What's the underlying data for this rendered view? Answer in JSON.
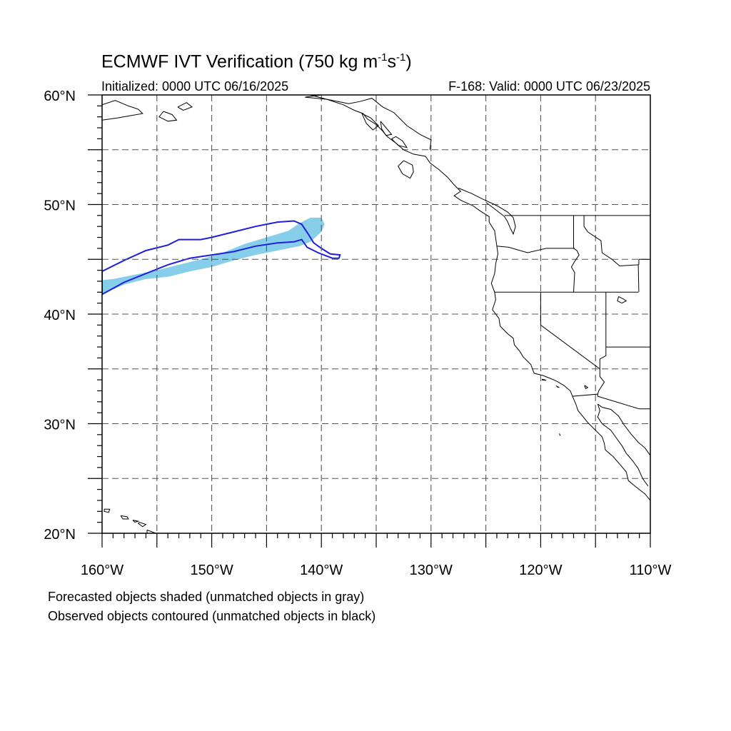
{
  "title": {
    "main": "ECMWF IVT Verification (750 kg m",
    "sup1": "-1",
    "mid": "s",
    "sup2": "-1",
    "end": ")"
  },
  "subtitle_left": "Initialized: 0000 UTC 06/16/2025",
  "subtitle_right": "F-168: Valid: 0000 UTC 06/23/2025",
  "map": {
    "lon_range": [
      -160,
      -110
    ],
    "lat_range": [
      20,
      60
    ],
    "gridlines": "dashed every 5 degrees",
    "lon_ticks": [
      {
        "value": -160,
        "label": "160°W"
      },
      {
        "value": -150,
        "label": "150°W"
      },
      {
        "value": -140,
        "label": "140°W"
      },
      {
        "value": -130,
        "label": "130°W"
      },
      {
        "value": -120,
        "label": "120°W"
      },
      {
        "value": -110,
        "label": "110°W"
      }
    ],
    "lat_ticks": [
      {
        "value": 60,
        "label": "60°N"
      },
      {
        "value": 50,
        "label": "50°N"
      },
      {
        "value": 40,
        "label": "40°N"
      },
      {
        "value": 30,
        "label": "30°N"
      },
      {
        "value": 20,
        "label": "20°N"
      }
    ],
    "forecast_object": {
      "style": "shaded",
      "color": "#87ceeb",
      "outline": [
        [
          -160,
          41.8
        ],
        [
          -158,
          42.7
        ],
        [
          -156,
          43.2
        ],
        [
          -154,
          43.4
        ],
        [
          -152,
          43.9
        ],
        [
          -150,
          44.3
        ],
        [
          -148,
          44.9
        ],
        [
          -146,
          45.4
        ],
        [
          -144,
          45.8
        ],
        [
          -142,
          46.2
        ],
        [
          -141,
          46.6
        ],
        [
          -140,
          47.5
        ],
        [
          -139.7,
          48.2
        ],
        [
          -140,
          48.8
        ],
        [
          -141,
          48.8
        ],
        [
          -142,
          48.3
        ],
        [
          -143,
          47.6
        ],
        [
          -145,
          47.0
        ],
        [
          -147,
          46.4
        ],
        [
          -149,
          45.6
        ],
        [
          -151,
          45.0
        ],
        [
          -153,
          44.5
        ],
        [
          -155,
          44.0
        ],
        [
          -157,
          43.6
        ],
        [
          -159,
          43.2
        ],
        [
          -160,
          43.1
        ]
      ]
    },
    "observed_object": {
      "style": "contour",
      "color": "#1f1fdd",
      "outline": [
        [
          -160,
          43.9
        ],
        [
          -158,
          44.9
        ],
        [
          -156,
          45.8
        ],
        [
          -154,
          46.3
        ],
        [
          -153,
          46.8
        ],
        [
          -151,
          46.8
        ],
        [
          -150,
          47.0
        ],
        [
          -148,
          47.5
        ],
        [
          -146,
          48.0
        ],
        [
          -144,
          48.4
        ],
        [
          -142.5,
          48.5
        ],
        [
          -141.8,
          48.2
        ],
        [
          -141.2,
          47.3
        ],
        [
          -140.7,
          46.5
        ],
        [
          -140,
          46.0
        ],
        [
          -139.2,
          45.5
        ],
        [
          -138.3,
          45.4
        ],
        [
          -138.4,
          45.1
        ],
        [
          -139,
          45.1
        ],
        [
          -140.3,
          45.6
        ],
        [
          -141.3,
          46.1
        ],
        [
          -141.8,
          46.8
        ],
        [
          -142.5,
          46.6
        ],
        [
          -144,
          46.5
        ],
        [
          -146,
          46.2
        ],
        [
          -148,
          45.7
        ],
        [
          -150,
          45.4
        ],
        [
          -152,
          45.1
        ],
        [
          -154,
          44.5
        ],
        [
          -156,
          43.7
        ],
        [
          -158,
          42.9
        ],
        [
          -160,
          41.8
        ]
      ]
    },
    "coastline_color": "#000000"
  },
  "notes": {
    "line1": "Forecasted objects shaded (unmatched objects in gray)",
    "line2": "Observed objects contoured (unmatched objects in black)"
  }
}
